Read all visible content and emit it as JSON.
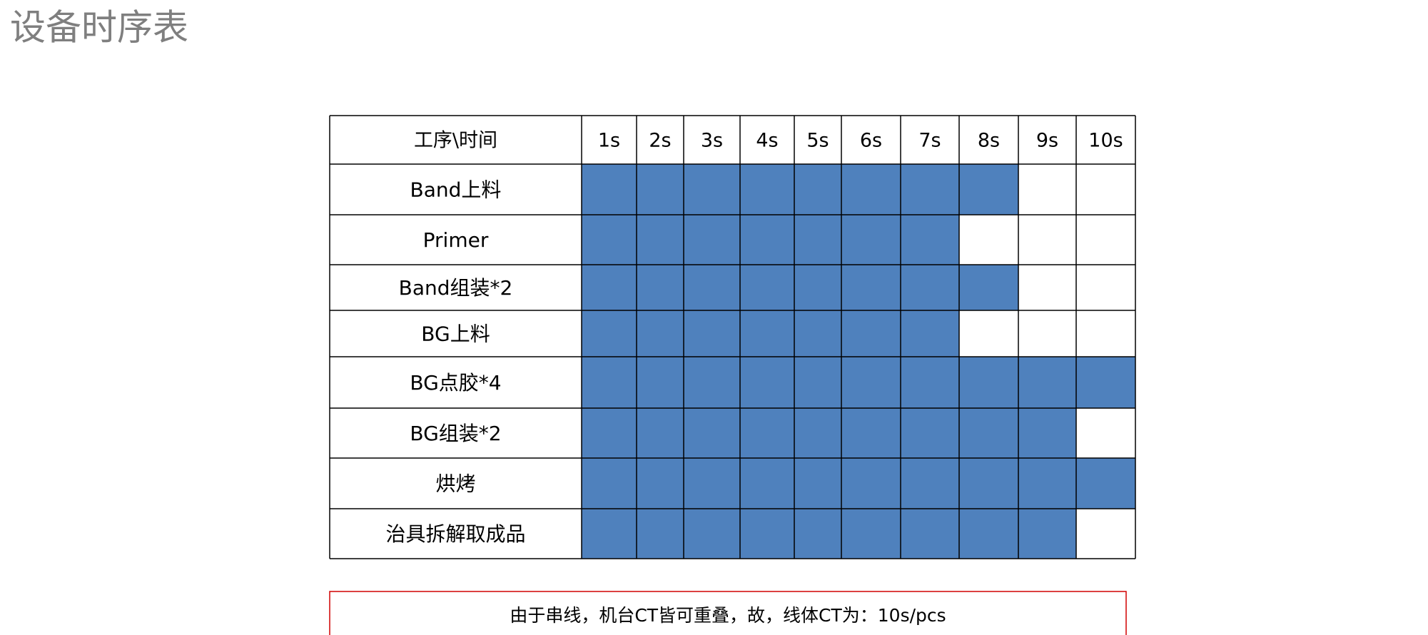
{
  "title": "设备时序表",
  "table": {
    "corner": "工序\\时间",
    "columns": [
      "1s",
      "2s",
      "3s",
      "4s",
      "5s",
      "6s",
      "7s",
      "8s",
      "9s",
      "10s"
    ],
    "rows": [
      {
        "label": "Band上料",
        "seconds": 8
      },
      {
        "label": "Primer",
        "seconds": 7
      },
      {
        "label": "Band组装*2",
        "seconds": 8
      },
      {
        "label": "BG上料",
        "seconds": 7
      },
      {
        "label": "BG点胶*4",
        "seconds": 10
      },
      {
        "label": "BG组装*2",
        "seconds": 9
      },
      {
        "label": "烘烤",
        "seconds": 10
      },
      {
        "label": "治具拆解取成品",
        "seconds": 9
      }
    ]
  },
  "note": "由于串线，机台CT皆可重叠，故，线体CT为：10s/pcs"
}
